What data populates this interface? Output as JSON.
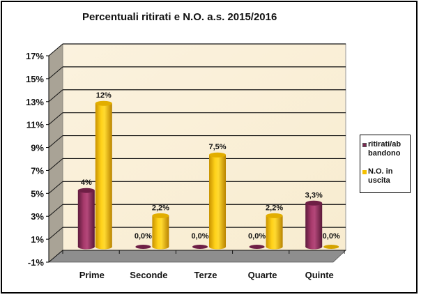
{
  "chart_data": {
    "type": "bar",
    "style": "3d-cylinder",
    "title": "Percentuali  ritirati  e N.O. a.s. 2015/2016",
    "xlabel": "",
    "ylabel": "",
    "categories": [
      "Prime",
      "Seconde",
      "Terze",
      "Quarte",
      "Quinte"
    ],
    "series": [
      {
        "name": "ritirati/abbandono",
        "legend_label": "ritirati/ab bandono",
        "color": "#9B2D5E",
        "values": [
          4.4,
          0.0,
          0.0,
          0.0,
          3.3
        ],
        "data_labels": [
          "4%",
          "0,0%",
          "0,0%",
          "0,0%",
          "3,3%"
        ]
      },
      {
        "name": "N.O. in uscita",
        "legend_label": "N.O. in uscita",
        "color": "#F5C000",
        "values": [
          12.0,
          2.2,
          7.5,
          2.2,
          0.0
        ],
        "data_labels": [
          "12%",
          "2,2%",
          "7,5%",
          "2,2%",
          "0,0%"
        ]
      }
    ],
    "yticks": [
      "-1%",
      "1%",
      "3%",
      "5%",
      "7%",
      "9%",
      "11%",
      "13%",
      "15%",
      "17%"
    ],
    "ylim": [
      -1,
      17
    ],
    "grid": true,
    "legend_position": "right",
    "wall_color": "#FAF0D8",
    "side_wall_color": "#A9A396",
    "floor_color": "#8E8E8E"
  },
  "legend": {
    "items": [
      {
        "line1": "ritirati/ab",
        "line2": "bandono",
        "color": "#7B2A52"
      },
      {
        "line1": "N.O. in",
        "line2": "uscita",
        "color": "#F5C000"
      }
    ]
  }
}
